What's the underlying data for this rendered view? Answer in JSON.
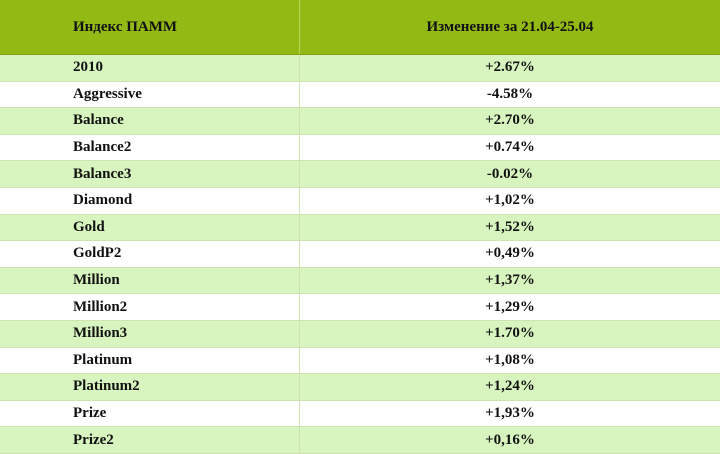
{
  "table": {
    "headers": [
      "Индекс ПАММ",
      "Изменение за 21.04-25.04"
    ],
    "rows": [
      {
        "name": "2010",
        "change": "+2.67%"
      },
      {
        "name": "Aggressive",
        "change": "-4.58%"
      },
      {
        "name": "Balance",
        "change": "+2.70%"
      },
      {
        "name": "Balance2",
        "change": "+0.74%"
      },
      {
        "name": "Balance3",
        "change": "-0.02%"
      },
      {
        "name": "Diamond",
        "change": "+1,02%"
      },
      {
        "name": "Gold",
        "change": "+1,52%"
      },
      {
        "name": "GoldP2",
        "change": "+0,49%"
      },
      {
        "name": "Million",
        "change": "+1,37%"
      },
      {
        "name": "Million2",
        "change": "+1,29%"
      },
      {
        "name": "Million3",
        "change": "+1.70%"
      },
      {
        "name": "Platinum",
        "change": "+1,08%"
      },
      {
        "name": "Platinum2",
        "change": "+1,24%"
      },
      {
        "name": "Prize",
        "change": "+1,93%"
      },
      {
        "name": "Prize2",
        "change": "+0,16%"
      }
    ]
  },
  "colors": {
    "header_bg": "#93ba14",
    "row_odd_bg": "#d8f5c0",
    "row_even_bg": "#ffffff"
  }
}
